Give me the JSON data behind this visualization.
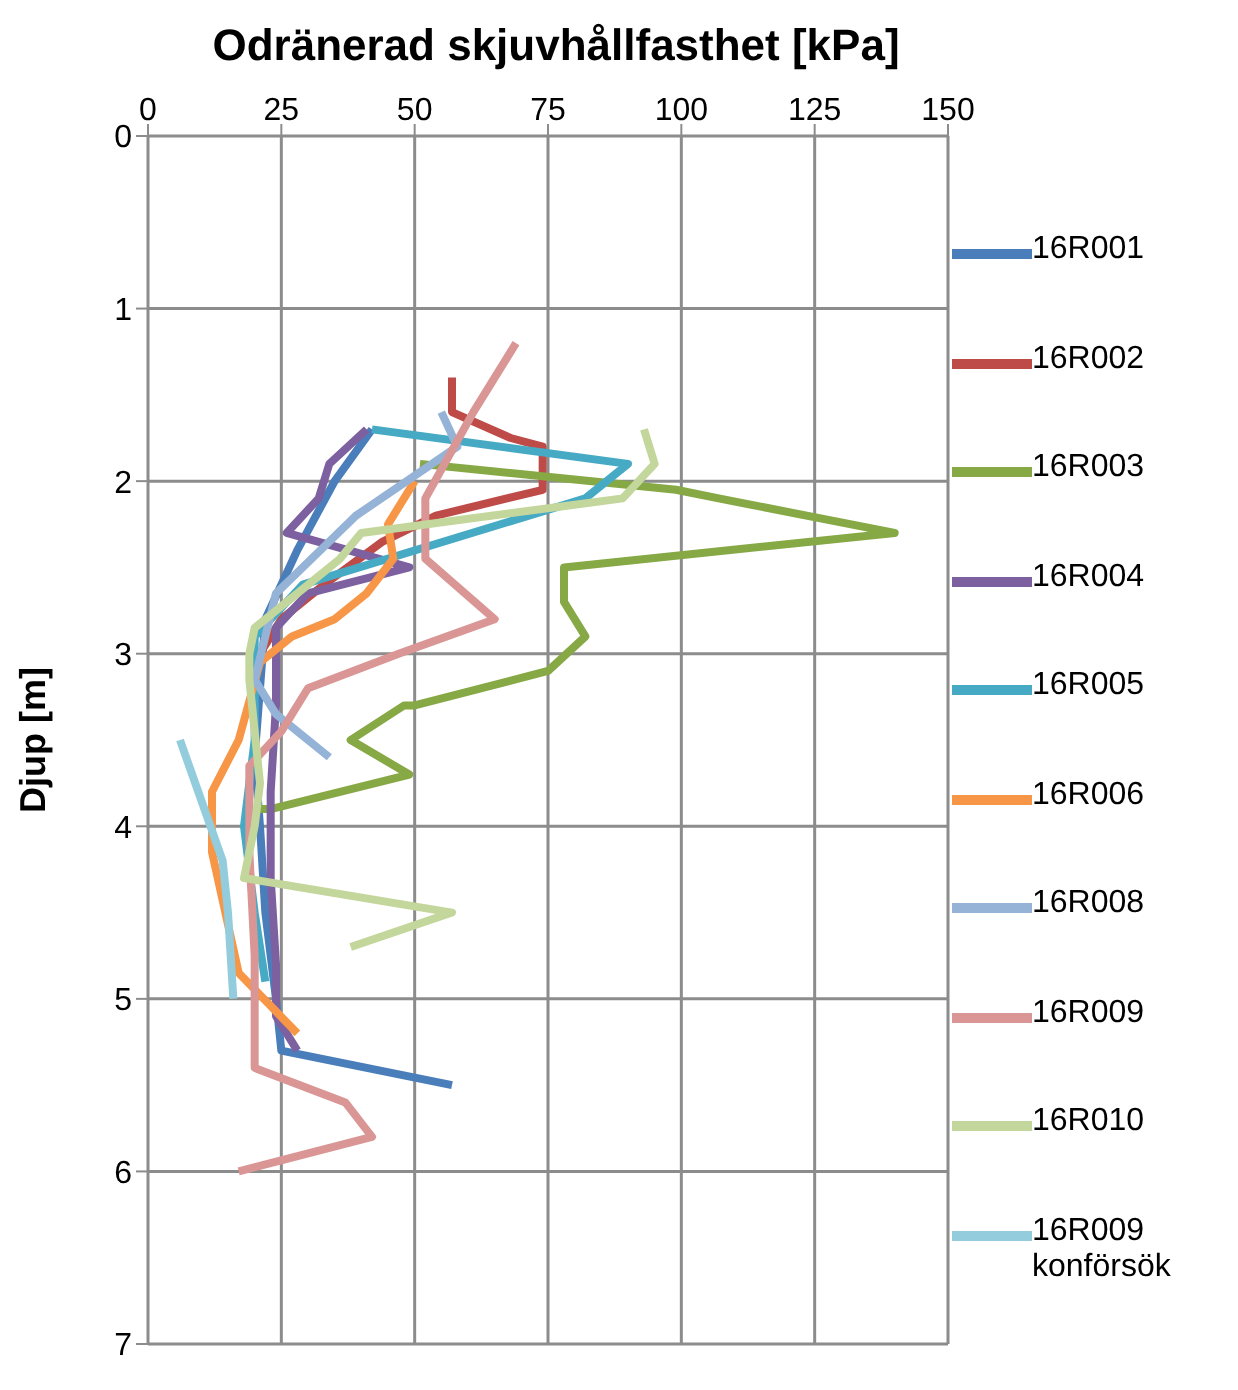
{
  "chart_data": {
    "type": "line",
    "title": "Odränerad skjuvhållfasthet [kPa]",
    "ylabel": "Djup [m]",
    "xlim": [
      0,
      150
    ],
    "xticks": [
      0,
      25,
      50,
      75,
      100,
      125,
      150
    ],
    "ylim": [
      7,
      0
    ],
    "yticks": [
      0,
      1,
      2,
      3,
      4,
      5,
      6,
      7
    ],
    "grid": true,
    "legend": "right",
    "marker": "none",
    "line_style": "solid",
    "series": [
      {
        "name": "16R001",
        "color": "#4a7ebb",
        "x": [
          42,
          35,
          28,
          22,
          21,
          20,
          21,
          22,
          24,
          25,
          57
        ],
        "values": [
          1.7,
          2.0,
          2.4,
          2.8,
          3.2,
          3.6,
          4.0,
          4.5,
          5.0,
          5.3,
          5.5
        ]
      },
      {
        "name": "16R002",
        "color": "#be4b48",
        "x": [
          57,
          57,
          68,
          74,
          74,
          54,
          44,
          33,
          25,
          21
        ],
        "values": [
          1.4,
          1.6,
          1.75,
          1.8,
          2.05,
          2.2,
          2.35,
          2.6,
          2.8,
          3.0
        ]
      },
      {
        "name": "16R003",
        "color": "#86a845",
        "x": [
          51,
          99,
          107,
          140,
          78,
          78,
          82,
          75,
          50,
          48,
          38,
          49,
          23,
          20
        ],
        "values": [
          1.9,
          2.05,
          2.1,
          2.3,
          2.5,
          2.7,
          2.9,
          3.1,
          3.3,
          3.3,
          3.5,
          3.7,
          3.9,
          3.9
        ]
      },
      {
        "name": "16R004",
        "color": "#7d60a0",
        "x": [
          41,
          34,
          32,
          26,
          49,
          30,
          24,
          24,
          23,
          23,
          24,
          24,
          28
        ],
        "values": [
          1.7,
          1.9,
          2.1,
          2.3,
          2.5,
          2.65,
          2.85,
          3.3,
          3.8,
          4.3,
          4.8,
          5.1,
          5.3
        ]
      },
      {
        "name": "16R005",
        "color": "#46aac5",
        "x": [
          42,
          90,
          82,
          29,
          20,
          20,
          18,
          20,
          22
        ],
        "values": [
          1.7,
          1.9,
          2.1,
          2.6,
          2.9,
          3.5,
          4.0,
          4.5,
          4.9
        ]
      },
      {
        "name": "16R006",
        "color": "#f79646",
        "x": [
          50,
          45,
          46,
          41,
          35,
          27,
          21,
          17,
          12,
          12,
          17,
          28
        ],
        "values": [
          2.0,
          2.25,
          2.45,
          2.65,
          2.8,
          2.9,
          3.05,
          3.5,
          3.8,
          4.15,
          4.85,
          5.2
        ]
      },
      {
        "name": "16R008",
        "color": "#95b3d7",
        "x": [
          55,
          58,
          39,
          24,
          20,
          24,
          34
        ],
        "values": [
          1.6,
          1.8,
          2.2,
          2.65,
          3.15,
          3.35,
          3.6
        ]
      },
      {
        "name": "16R009",
        "color": "#d99694",
        "x": [
          69,
          61,
          52,
          52,
          65,
          47,
          30,
          25,
          19,
          19,
          20,
          20,
          37,
          42,
          17
        ],
        "values": [
          1.2,
          1.6,
          2.1,
          2.45,
          2.8,
          3.0,
          3.2,
          3.45,
          3.65,
          4.15,
          4.75,
          5.4,
          5.6,
          5.8,
          6.0
        ]
      },
      {
        "name": "16R010",
        "color": "#c3d69b",
        "x": [
          93,
          95,
          89,
          40,
          36,
          20,
          19,
          19,
          21,
          20,
          18,
          57,
          38
        ],
        "values": [
          1.7,
          1.9,
          2.1,
          2.3,
          2.45,
          2.85,
          3.0,
          3.15,
          3.75,
          4.0,
          4.3,
          4.5,
          4.7
        ]
      },
      {
        "name": "16R009 konförsök",
        "color": "#93cddd",
        "x": [
          6,
          14,
          15,
          16
        ],
        "values": [
          3.5,
          4.2,
          4.5,
          5.0
        ]
      }
    ]
  }
}
